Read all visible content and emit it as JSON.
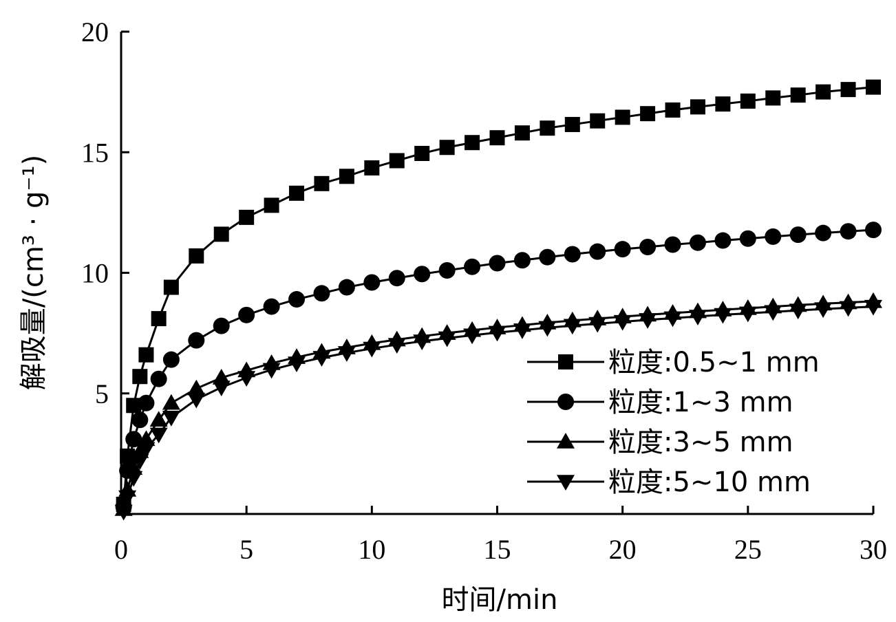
{
  "chart_data": {
    "type": "line",
    "xlabel": "时间/min",
    "ylabel": "解吸量/(cm³ · g⁻¹)",
    "xlim": [
      0,
      30
    ],
    "ylim": [
      0,
      20
    ],
    "xticks": [
      "0",
      "5",
      "10",
      "15",
      "20",
      "25",
      "30"
    ],
    "yticks": [
      "5",
      "10",
      "15",
      "20"
    ],
    "grid": false,
    "legend_position": "bottom-right",
    "x": [
      0.1,
      0.25,
      0.5,
      0.75,
      1.0,
      1.5,
      2,
      3,
      4,
      5,
      6,
      7,
      8,
      9,
      10,
      11,
      12,
      13,
      14,
      15,
      16,
      17,
      18,
      19,
      20,
      21,
      22,
      23,
      24,
      25,
      26,
      27,
      28,
      29,
      30
    ],
    "series": [
      {
        "name": "粒度:0.5~1 mm",
        "marker": "square",
        "values": [
          0.4,
          2.4,
          4.5,
          5.7,
          6.6,
          8.1,
          9.4,
          10.7,
          11.6,
          12.3,
          12.8,
          13.3,
          13.7,
          14.0,
          14.35,
          14.65,
          14.95,
          15.2,
          15.4,
          15.6,
          15.8,
          16.0,
          16.15,
          16.3,
          16.45,
          16.6,
          16.75,
          16.88,
          17.0,
          17.12,
          17.25,
          17.37,
          17.5,
          17.6,
          17.7
        ]
      },
      {
        "name": "粒度:1~3 mm",
        "marker": "circle",
        "values": [
          0.3,
          1.8,
          3.1,
          3.9,
          4.6,
          5.6,
          6.4,
          7.2,
          7.8,
          8.25,
          8.6,
          8.9,
          9.15,
          9.4,
          9.6,
          9.78,
          9.95,
          10.1,
          10.25,
          10.4,
          10.52,
          10.65,
          10.77,
          10.88,
          10.98,
          11.07,
          11.17,
          11.25,
          11.34,
          11.42,
          11.5,
          11.58,
          11.65,
          11.72,
          11.78
        ]
      },
      {
        "name": "粒度:3~5 mm",
        "marker": "triangle-up",
        "values": [
          0.2,
          1.0,
          1.9,
          2.6,
          3.1,
          3.9,
          4.6,
          5.2,
          5.65,
          5.95,
          6.25,
          6.5,
          6.72,
          6.9,
          7.08,
          7.23,
          7.37,
          7.5,
          7.62,
          7.73,
          7.83,
          7.93,
          8.02,
          8.1,
          8.18,
          8.26,
          8.33,
          8.4,
          8.47,
          8.53,
          8.6,
          8.66,
          8.72,
          8.77,
          8.82
        ]
      },
      {
        "name": "粒度:5~10 mm",
        "marker": "triangle-down",
        "values": [
          0.1,
          0.7,
          1.5,
          2.2,
          2.7,
          3.3,
          4.0,
          4.75,
          5.25,
          5.65,
          5.98,
          6.25,
          6.48,
          6.68,
          6.86,
          7.02,
          7.16,
          7.29,
          7.41,
          7.52,
          7.62,
          7.72,
          7.81,
          7.89,
          7.97,
          8.05,
          8.12,
          8.19,
          8.26,
          8.32,
          8.38,
          8.44,
          8.5,
          8.55,
          8.6
        ]
      }
    ]
  }
}
